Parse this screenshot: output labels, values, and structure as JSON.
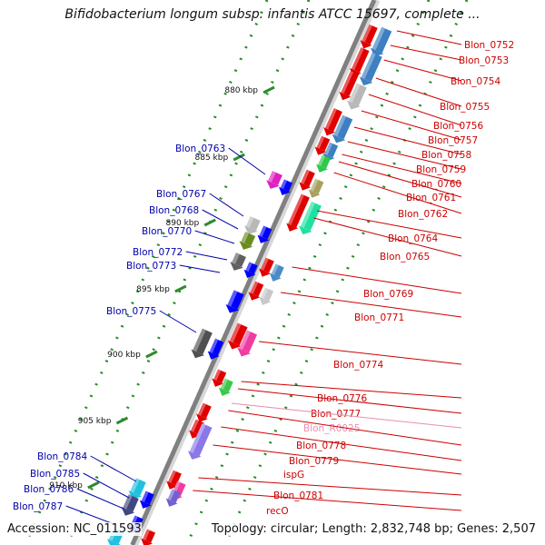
{
  "header": {
    "title": "Bifidobacterium longum subsp. infantis ATCC 15697, complete ...",
    "accession_label": "Accession: NC_011593",
    "summary_label": "Topology: circular; Length: 2,832,748 bp; Genes: 2,507"
  },
  "colors": {
    "forward_label": "#cc0000",
    "reverse_label": "#0000aa",
    "rna_label": "#e890b0",
    "backbone": "#808080",
    "tick": "#2e8b2e"
  },
  "scale": {
    "ticks": [
      "880 kbp",
      "885 kbp",
      "890 kbp",
      "895 kbp",
      "900 kbp",
      "905 kbp",
      "910 kbp"
    ]
  },
  "forward_genes": [
    {
      "label": "Blon_0752"
    },
    {
      "label": "Blon_0753"
    },
    {
      "label": "Blon_0754"
    },
    {
      "label": "Blon_0755"
    },
    {
      "label": "Blon_0756"
    },
    {
      "label": "Blon_0757"
    },
    {
      "label": "Blon_0758"
    },
    {
      "label": "Blon_0759"
    },
    {
      "label": "Blon_0760"
    },
    {
      "label": "Blon_0761"
    },
    {
      "label": "Blon_0762"
    },
    {
      "label": "Blon_0764"
    },
    {
      "label": "Blon_0765"
    },
    {
      "label": "Blon_0769"
    },
    {
      "label": "Blon_0771"
    },
    {
      "label": "Blon_0774"
    },
    {
      "label": "Blon_0776"
    },
    {
      "label": "Blon_0777"
    },
    {
      "label": "Blon_R0025"
    },
    {
      "label": "Blon_0778"
    },
    {
      "label": "Blon_0779"
    },
    {
      "label": "ispG"
    },
    {
      "label": "Blon_0781"
    },
    {
      "label": "recO"
    }
  ],
  "reverse_genes": [
    {
      "label": "Blon_0763"
    },
    {
      "label": "Blon_0767"
    },
    {
      "label": "Blon_0768"
    },
    {
      "label": "Blon_0770"
    },
    {
      "label": "Blon_0772"
    },
    {
      "label": "Blon_0773"
    },
    {
      "label": "Blon_0775"
    },
    {
      "label": "Blon_0784"
    },
    {
      "label": "Blon_0785"
    },
    {
      "label": "Blon_0786"
    },
    {
      "label": "Blon_0787"
    }
  ]
}
